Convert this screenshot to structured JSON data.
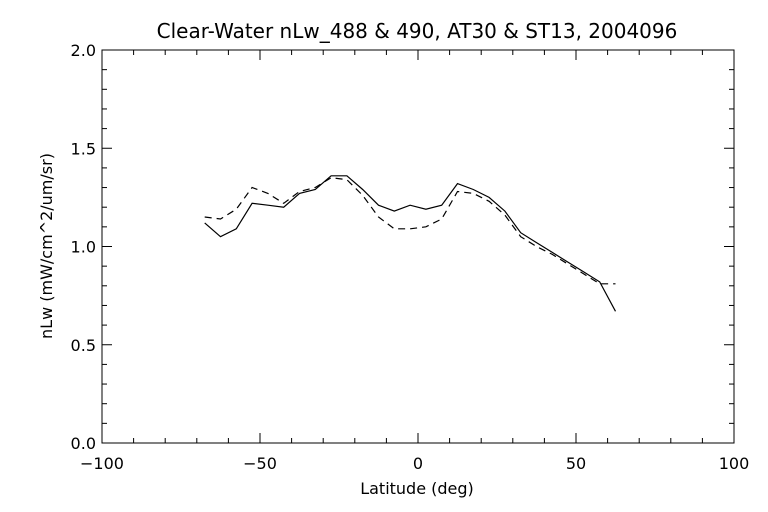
{
  "chart_data": {
    "type": "line",
    "title": "Clear-Water nLw_488 & 490, AT30 & ST13, 2004096",
    "xlabel": "Latitude (deg)",
    "ylabel": "nLw (mW/cm^2/um/sr)",
    "xlim": [
      -100,
      100
    ],
    "ylim": [
      0.0,
      2.0
    ],
    "xticks": [
      -100,
      -50,
      0,
      50,
      100
    ],
    "xtick_labels": [
      "−100",
      "−50",
      "0",
      "50",
      "100"
    ],
    "yticks": [
      0.0,
      0.5,
      1.0,
      1.5,
      2.0
    ],
    "ytick_labels": [
      "0.0",
      "0.5",
      "1.0",
      "1.5",
      "2.0"
    ],
    "x_minor_step": 10,
    "y_minor_step": 0.1,
    "grid": false,
    "series": [
      {
        "style": "solid",
        "color": "#000000",
        "x": [
          -67.5,
          -62.5,
          -57.5,
          -52.5,
          -47.5,
          -42.5,
          -37.5,
          -32.5,
          -27.5,
          -22.5,
          -17.5,
          -12.5,
          -7.5,
          -2.5,
          2.5,
          7.5,
          12.5,
          17.5,
          22.5,
          27.5,
          32.5,
          37.5,
          42.5,
          47.5,
          52.5,
          57.5,
          62.5
        ],
        "y": [
          1.12,
          1.05,
          1.09,
          1.22,
          1.21,
          1.2,
          1.27,
          1.29,
          1.36,
          1.36,
          1.29,
          1.21,
          1.18,
          1.21,
          1.19,
          1.21,
          1.32,
          1.29,
          1.25,
          1.18,
          1.07,
          1.02,
          0.97,
          0.92,
          0.87,
          0.82,
          0.67
        ]
      },
      {
        "style": "dashed",
        "color": "#000000",
        "x": [
          -67.5,
          -62.5,
          -57.5,
          -52.5,
          -47.5,
          -42.5,
          -37.5,
          -32.5,
          -27.5,
          -22.5,
          -17.5,
          -12.5,
          -7.5,
          -2.5,
          2.5,
          7.5,
          12.5,
          17.5,
          22.5,
          27.5,
          32.5,
          37.5,
          42.5,
          47.5,
          52.5,
          57.5,
          62.5
        ],
        "y": [
          1.15,
          1.14,
          1.19,
          1.3,
          1.27,
          1.22,
          1.28,
          1.3,
          1.35,
          1.34,
          1.26,
          1.15,
          1.09,
          1.09,
          1.1,
          1.14,
          1.28,
          1.27,
          1.23,
          1.16,
          1.05,
          1.0,
          0.96,
          0.91,
          0.86,
          0.81,
          0.81
        ]
      }
    ]
  }
}
